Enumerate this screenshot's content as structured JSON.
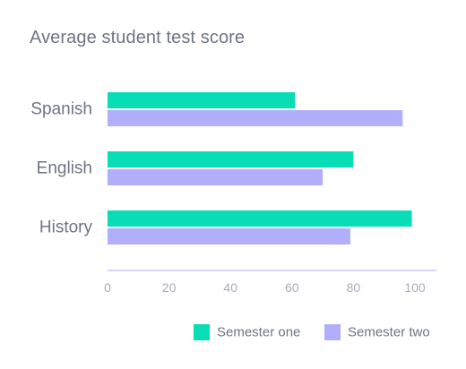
{
  "chart_data": {
    "type": "bar",
    "orientation": "horizontal",
    "title": "Average student test score",
    "categories": [
      "Spanish",
      "English",
      "History"
    ],
    "series": [
      {
        "name": "Semester one",
        "values": [
          61,
          80,
          99
        ],
        "color": "#08ddb6"
      },
      {
        "name": "Semester two",
        "values": [
          96,
          70,
          79
        ],
        "color": "#b1aefb"
      }
    ],
    "x_ticks": [
      0,
      20,
      40,
      60,
      80,
      100
    ],
    "xlim": [
      0,
      107
    ],
    "xlabel": "",
    "ylabel": "",
    "grid": false,
    "legend_position": "bottom-right",
    "axis_color": "#c9cbf3"
  }
}
